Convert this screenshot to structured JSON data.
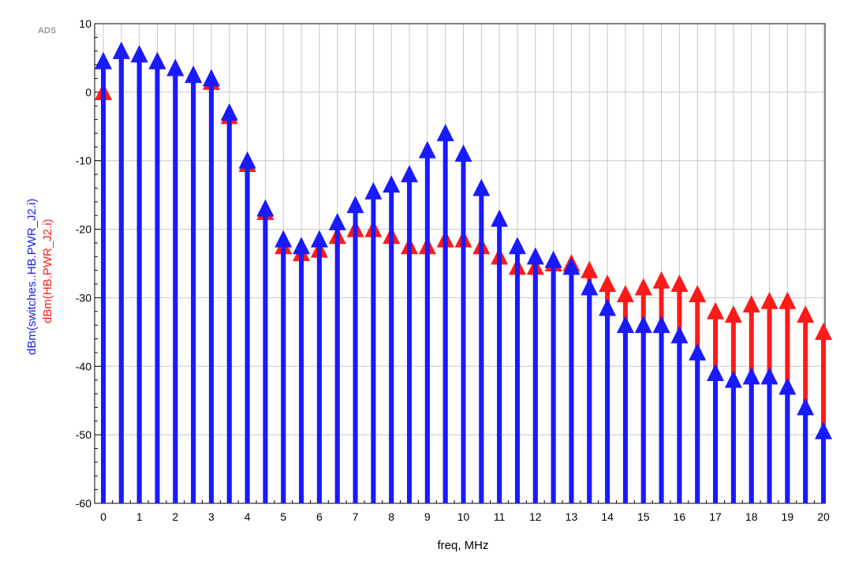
{
  "watermark": "ADS",
  "chart_data": {
    "type": "stem",
    "xlabel": "freq, MHz",
    "ylabels": [
      "dBm(switches..HB.PWR_J2.i)",
      "dBm(HB.PWR_J2.i)"
    ],
    "xlim": [
      0,
      20
    ],
    "ylim": [
      -60,
      10
    ],
    "xticks": [
      0,
      1,
      2,
      3,
      4,
      5,
      6,
      7,
      8,
      9,
      10,
      11,
      12,
      13,
      14,
      15,
      16,
      17,
      18,
      19,
      20
    ],
    "yticks": [
      10,
      0,
      -10,
      -20,
      -30,
      -40,
      -50,
      -60
    ],
    "grid": true,
    "x": [
      0,
      0.5,
      1,
      1.5,
      2,
      2.5,
      3,
      3.5,
      4,
      4.5,
      5,
      5.5,
      6,
      6.5,
      7,
      7.5,
      8,
      8.5,
      9,
      9.5,
      10,
      10.5,
      11,
      11.5,
      12,
      12.5,
      13,
      13.5,
      14,
      14.5,
      15,
      15.5,
      16,
      16.5,
      17,
      17.5,
      18,
      18.5,
      19,
      19.5,
      20
    ],
    "series": [
      {
        "name": "dBm(HB.PWR_J2.i)",
        "color": "#ff1a1a",
        "values": [
          0,
          6,
          5.5,
          4.5,
          3.5,
          2.5,
          1.5,
          -3.5,
          -10.5,
          -17.5,
          -22.5,
          -23.5,
          -23,
          -21,
          -20,
          -20,
          -21,
          -22.5,
          -22.5,
          -21.5,
          -21.5,
          -22.5,
          -24,
          -25.5,
          -25.5,
          -25,
          -25,
          -26,
          -28,
          -29.5,
          -28.5,
          -27.5,
          -28,
          -29.5,
          -32,
          -32.5,
          -31,
          -30.5,
          -30.5,
          -32.5,
          -35
        ]
      },
      {
        "name": "dBm(switches..HB.PWR_J2.i)",
        "color": "#1a1aff",
        "values": [
          4.5,
          6,
          5.5,
          4.5,
          3.5,
          2.5,
          2,
          -3,
          -10,
          -17,
          -21.5,
          -22.5,
          -21.5,
          -19,
          -16.5,
          -14.5,
          -13.5,
          -12,
          -8.5,
          -6,
          -9,
          -14,
          -18.5,
          -22.5,
          -24,
          -24.5,
          -25.5,
          -28.5,
          -31.5,
          -34,
          -34,
          -34,
          -35.5,
          -38,
          -41,
          -42,
          -41.5,
          -41.5,
          -43,
          -46,
          -49.5
        ]
      }
    ]
  }
}
